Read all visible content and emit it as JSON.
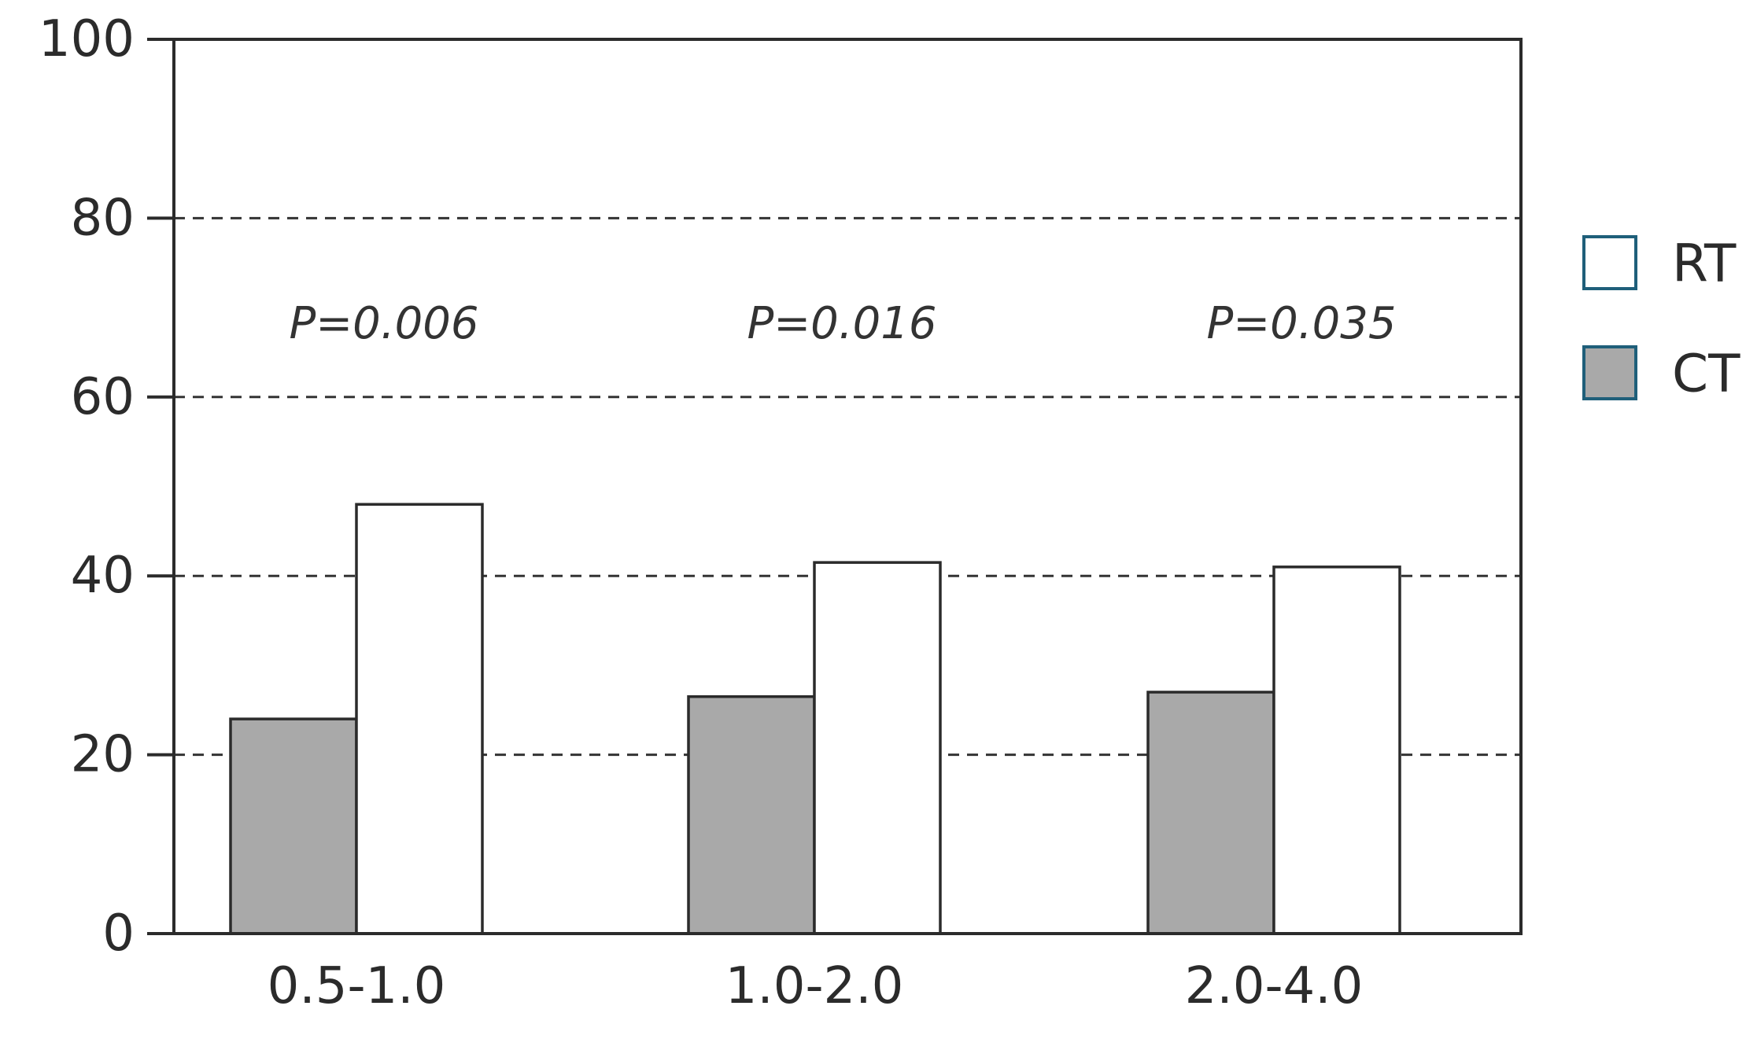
{
  "chart_data": {
    "type": "bar",
    "categories": [
      "0.5-1.0",
      "1.0-2.0",
      "2.0-4.0"
    ],
    "series": [
      {
        "name": "CT",
        "values": [
          24,
          26.5,
          27
        ],
        "color": "#a9a9a9"
      },
      {
        "name": "RT",
        "values": [
          48,
          41.5,
          41
        ],
        "color": "#ffffff"
      }
    ],
    "ylim": [
      0,
      100
    ],
    "yticks": [
      0,
      20,
      40,
      60,
      80,
      100
    ],
    "grid": "dashed horizontal at 20, 40, 60, 80",
    "legend_position": "right",
    "legend_order": [
      "RT",
      "CT"
    ],
    "legend_edge_color": "#1f5f7a",
    "annotations": [
      "P=0.006",
      "P=0.016",
      "P=0.035"
    ],
    "title": "",
    "xlabel": "",
    "ylabel": ""
  }
}
